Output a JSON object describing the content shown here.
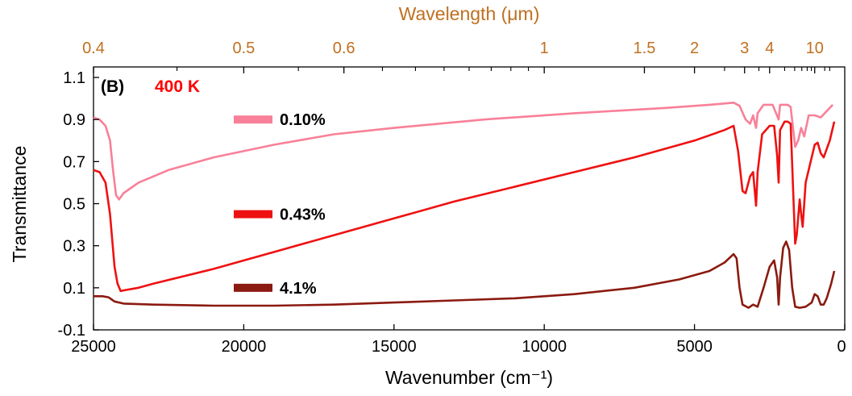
{
  "chart_data": {
    "type": "line",
    "panel_label": "(B)",
    "condition_label": "400 K",
    "xlabel": "Wavenumber (cm⁻¹)",
    "ylabel": "Transmittance",
    "top_xlabel": "Wavelength (μm)",
    "xlim": [
      25000,
      0
    ],
    "ylim": [
      -0.1,
      1.15
    ],
    "x_ticks": [
      25000,
      20000,
      15000,
      10000,
      5000,
      0
    ],
    "x_tick_labels": [
      "25000",
      "20000",
      "15000",
      "10000",
      "5000",
      "0"
    ],
    "y_ticks": [
      -0.1,
      0.1,
      0.3,
      0.5,
      0.7,
      0.9,
      1.1
    ],
    "y_tick_labels": [
      "-0.1",
      "0.1",
      "0.3",
      "0.5",
      "0.7",
      "0.9",
      "1.1"
    ],
    "top_x_ticks_um": [
      0.4,
      0.5,
      0.6,
      1,
      1.5,
      2,
      3,
      4,
      10
    ],
    "top_x_tick_labels": [
      "0.4",
      "0.5",
      "0.6",
      "1",
      "1.5",
      "2",
      "3",
      "4",
      "10"
    ],
    "top_minor_ticks_um": [
      0.45,
      0.55,
      0.65,
      0.7,
      0.75,
      0.8,
      0.85,
      0.9,
      0.95,
      2.5,
      3.5,
      5,
      6,
      7,
      8,
      9,
      15,
      20
    ],
    "grid": false,
    "legend_placement": "inline",
    "colors": {
      "top_axis": "#C07020",
      "condition_label": "#FF0000"
    },
    "series": [
      {
        "name": "0.10%",
        "color": "#F88098",
        "points": [
          [
            25000,
            0.91
          ],
          [
            24800,
            0.9
          ],
          [
            24600,
            0.87
          ],
          [
            24450,
            0.8
          ],
          [
            24350,
            0.66
          ],
          [
            24250,
            0.54
          ],
          [
            24150,
            0.52
          ],
          [
            24000,
            0.55
          ],
          [
            23500,
            0.6
          ],
          [
            22500,
            0.66
          ],
          [
            21000,
            0.72
          ],
          [
            19000,
            0.78
          ],
          [
            17000,
            0.83
          ],
          [
            15000,
            0.86
          ],
          [
            12000,
            0.9
          ],
          [
            9000,
            0.93
          ],
          [
            6000,
            0.955
          ],
          [
            4500,
            0.97
          ],
          [
            3700,
            0.98
          ],
          [
            3500,
            0.965
          ],
          [
            3300,
            0.9
          ],
          [
            3150,
            0.88
          ],
          [
            3050,
            0.92
          ],
          [
            2950,
            0.86
          ],
          [
            2900,
            0.93
          ],
          [
            2700,
            0.97
          ],
          [
            2400,
            0.97
          ],
          [
            2200,
            0.9
          ],
          [
            2150,
            0.97
          ],
          [
            1900,
            0.97
          ],
          [
            1800,
            0.96
          ],
          [
            1650,
            0.77
          ],
          [
            1550,
            0.8
          ],
          [
            1450,
            0.86
          ],
          [
            1350,
            0.82
          ],
          [
            1200,
            0.92
          ],
          [
            1000,
            0.92
          ],
          [
            800,
            0.91
          ],
          [
            600,
            0.94
          ],
          [
            400,
            0.97
          ]
        ]
      },
      {
        "name": "0.43%",
        "color": "#EE1111",
        "points": [
          [
            25000,
            0.66
          ],
          [
            24800,
            0.65
          ],
          [
            24600,
            0.6
          ],
          [
            24450,
            0.45
          ],
          [
            24300,
            0.2
          ],
          [
            24200,
            0.12
          ],
          [
            24100,
            0.085
          ],
          [
            23900,
            0.09
          ],
          [
            23500,
            0.1
          ],
          [
            23000,
            0.12
          ],
          [
            21000,
            0.19
          ],
          [
            19000,
            0.27
          ],
          [
            17000,
            0.35
          ],
          [
            15000,
            0.43
          ],
          [
            13000,
            0.51
          ],
          [
            11000,
            0.58
          ],
          [
            9000,
            0.65
          ],
          [
            7000,
            0.72
          ],
          [
            5000,
            0.8
          ],
          [
            4000,
            0.85
          ],
          [
            3700,
            0.87
          ],
          [
            3550,
            0.75
          ],
          [
            3400,
            0.56
          ],
          [
            3300,
            0.55
          ],
          [
            3150,
            0.63
          ],
          [
            3050,
            0.65
          ],
          [
            2950,
            0.49
          ],
          [
            2900,
            0.65
          ],
          [
            2750,
            0.83
          ],
          [
            2500,
            0.87
          ],
          [
            2350,
            0.87
          ],
          [
            2250,
            0.73
          ],
          [
            2200,
            0.6
          ],
          [
            2150,
            0.85
          ],
          [
            2000,
            0.89
          ],
          [
            1900,
            0.89
          ],
          [
            1800,
            0.88
          ],
          [
            1700,
            0.5
          ],
          [
            1650,
            0.31
          ],
          [
            1600,
            0.35
          ],
          [
            1500,
            0.52
          ],
          [
            1450,
            0.45
          ],
          [
            1400,
            0.39
          ],
          [
            1300,
            0.6
          ],
          [
            1100,
            0.72
          ],
          [
            1000,
            0.78
          ],
          [
            900,
            0.79
          ],
          [
            800,
            0.74
          ],
          [
            700,
            0.72
          ],
          [
            500,
            0.8
          ],
          [
            350,
            0.89
          ]
        ]
      },
      {
        "name": "4.1%",
        "color": "#8B1A10",
        "points": [
          [
            25000,
            0.06
          ],
          [
            24700,
            0.06
          ],
          [
            24500,
            0.055
          ],
          [
            24300,
            0.035
          ],
          [
            24000,
            0.025
          ],
          [
            23000,
            0.02
          ],
          [
            21000,
            0.015
          ],
          [
            19000,
            0.015
          ],
          [
            17000,
            0.02
          ],
          [
            15000,
            0.03
          ],
          [
            13000,
            0.04
          ],
          [
            11000,
            0.05
          ],
          [
            9000,
            0.07
          ],
          [
            7000,
            0.1
          ],
          [
            5500,
            0.14
          ],
          [
            4500,
            0.18
          ],
          [
            4000,
            0.22
          ],
          [
            3700,
            0.26
          ],
          [
            3600,
            0.24
          ],
          [
            3500,
            0.1
          ],
          [
            3400,
            0.02
          ],
          [
            3200,
            0.005
          ],
          [
            3050,
            0.02
          ],
          [
            2900,
            0.01
          ],
          [
            2700,
            0.1
          ],
          [
            2500,
            0.2
          ],
          [
            2350,
            0.23
          ],
          [
            2250,
            0.15
          ],
          [
            2200,
            0.02
          ],
          [
            2150,
            0.15
          ],
          [
            2050,
            0.29
          ],
          [
            1950,
            0.32
          ],
          [
            1850,
            0.28
          ],
          [
            1750,
            0.1
          ],
          [
            1650,
            0.01
          ],
          [
            1500,
            0.005
          ],
          [
            1300,
            0.01
          ],
          [
            1100,
            0.03
          ],
          [
            1000,
            0.07
          ],
          [
            900,
            0.06
          ],
          [
            800,
            0.02
          ],
          [
            700,
            0.02
          ],
          [
            600,
            0.05
          ],
          [
            450,
            0.12
          ],
          [
            350,
            0.18
          ]
        ]
      }
    ],
    "legend_entries": [
      {
        "series": "0.10%",
        "y": 0.9
      },
      {
        "series": "0.43%",
        "y": 0.45
      },
      {
        "series": "4.1%",
        "y": 0.1
      }
    ]
  }
}
